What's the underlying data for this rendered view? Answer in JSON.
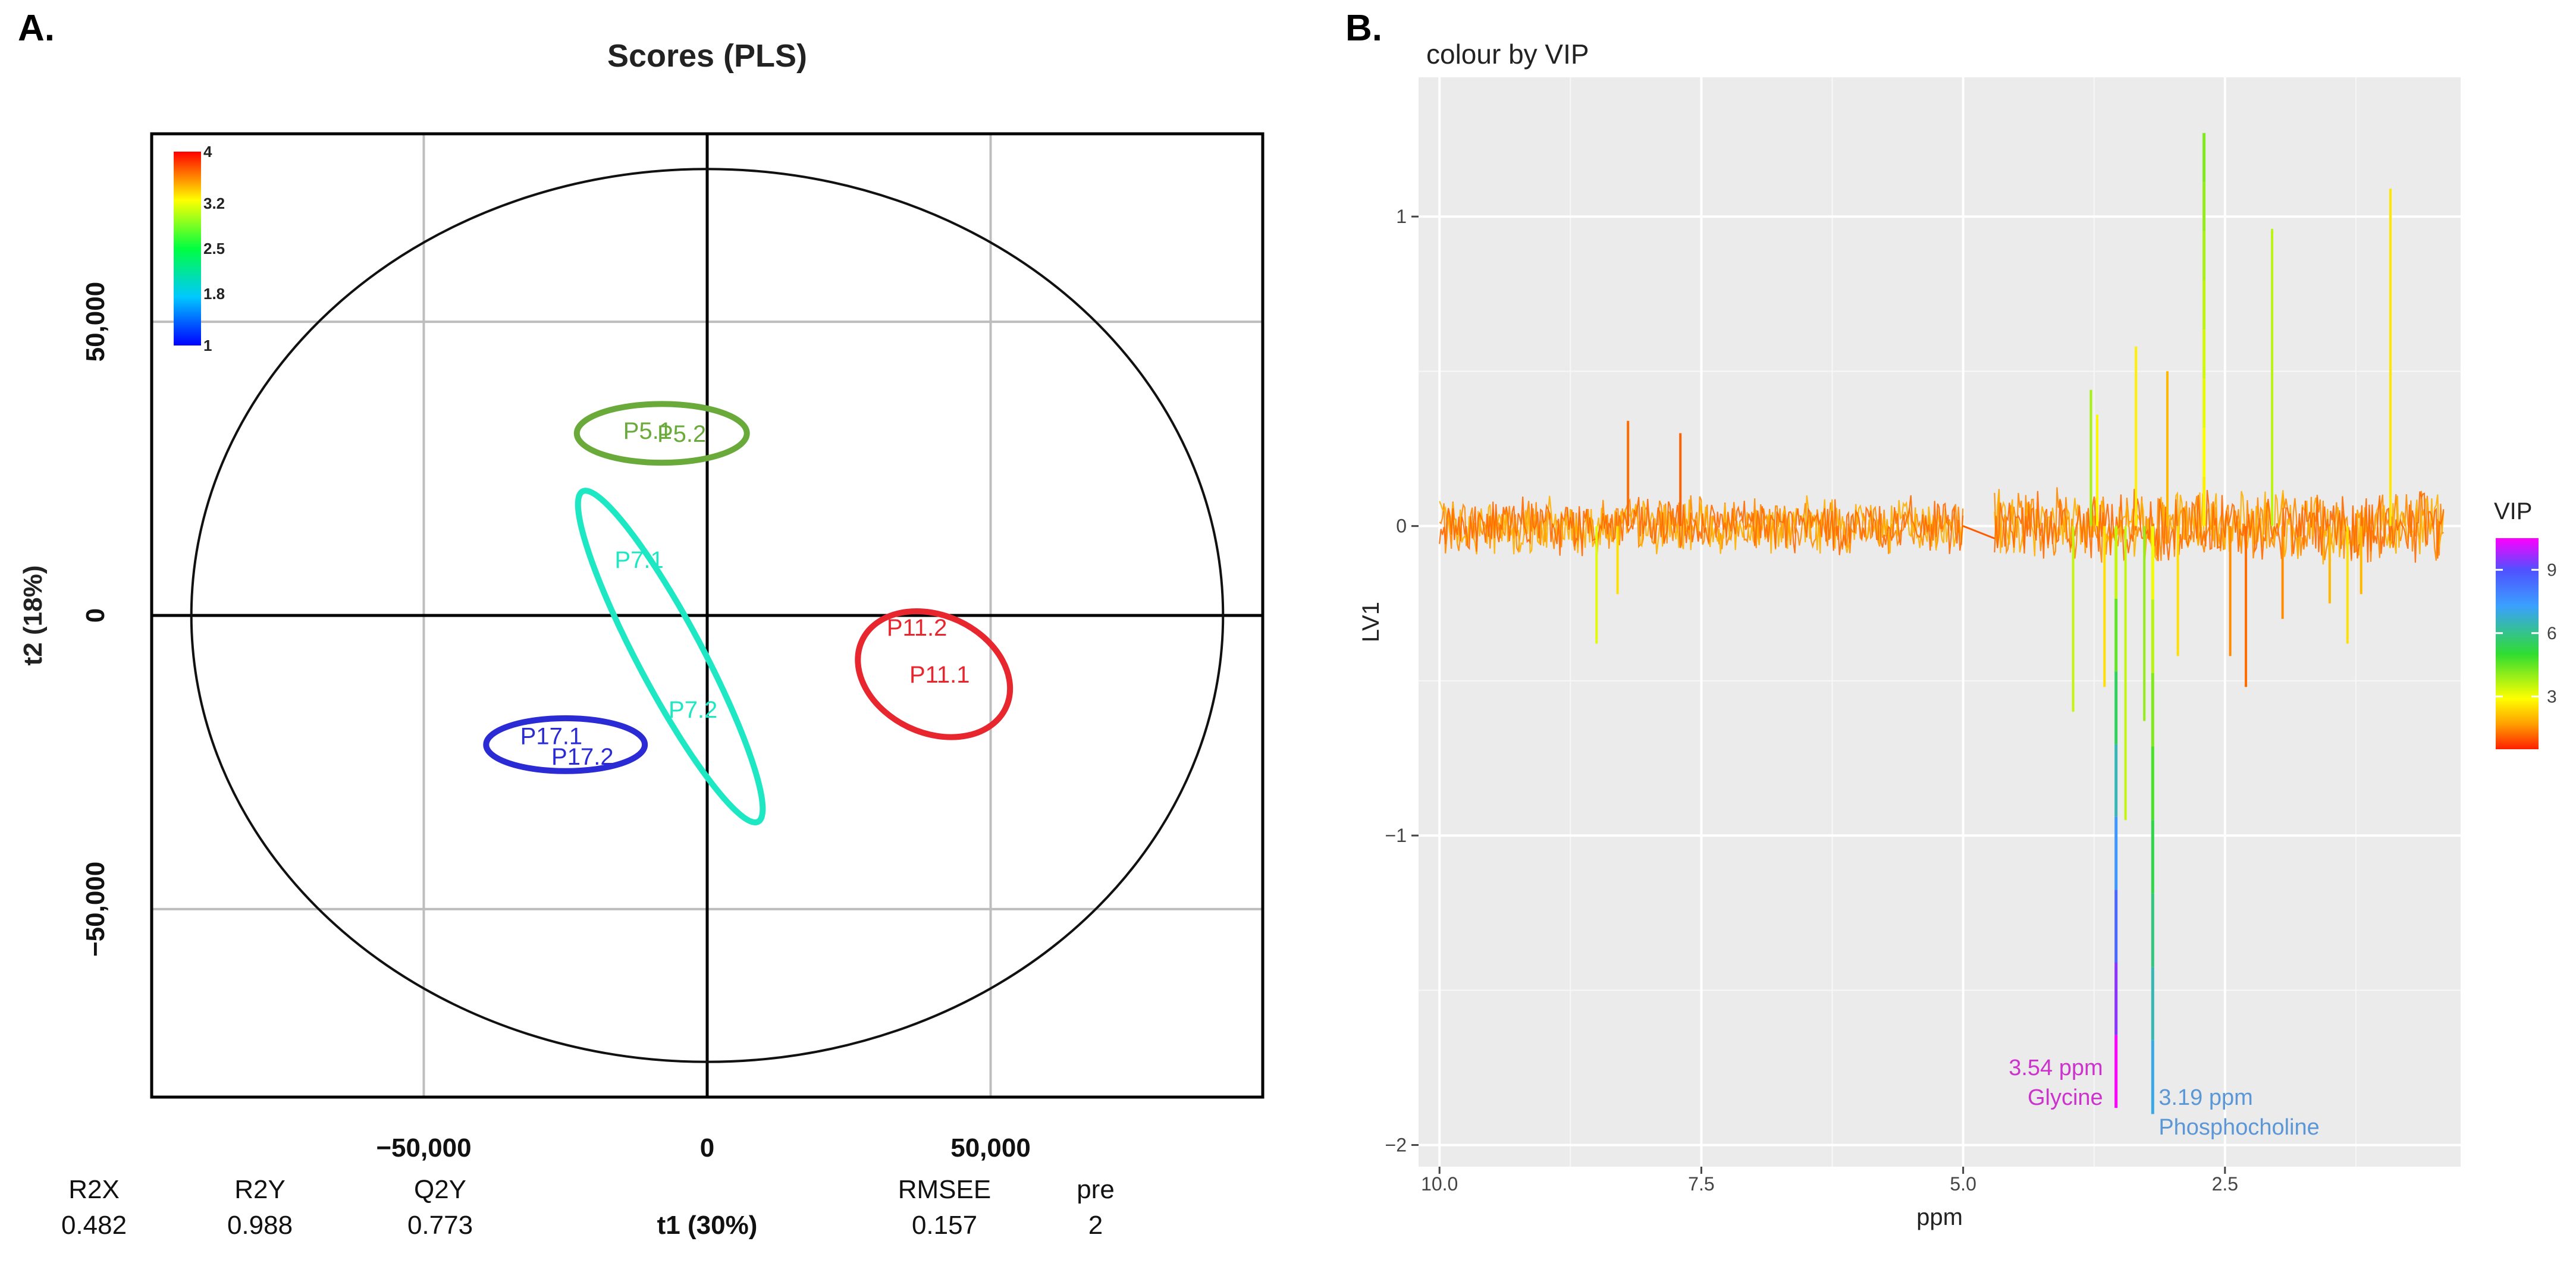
{
  "chart_data": [
    {
      "panel_label": "A.",
      "type": "scatter",
      "title": "Scores (PLS)",
      "xlabel": "t1 (30%)",
      "ylabel": "t2 (18%)",
      "xlim": [
        -98000,
        98000
      ],
      "ylim": [
        -82000,
        82000
      ],
      "xticks": [
        -50000,
        0,
        50000
      ],
      "yticks": [
        -50000,
        0,
        50000
      ],
      "xtick_labels": [
        "−50,000",
        "0",
        "50,000"
      ],
      "ytick_labels": [
        "−50,000",
        "0",
        "50,000"
      ],
      "grid": true,
      "hotelling_ellipse": {
        "cx": 0,
        "cy": 0,
        "rx": 91000,
        "ry": 76000
      },
      "colorbar": {
        "ticks": [
          "4",
          "3.2",
          "2.5",
          "1.8",
          "1"
        ],
        "min": 1,
        "max": 4
      },
      "groups": [
        {
          "name": "P5",
          "color": "#6aaa3a",
          "ellipse": {
            "cx": -8000,
            "cy": 31000,
            "rx": 15000,
            "ry": 5000,
            "angle": 0
          },
          "points": [
            {
              "label": "P5.1",
              "x": -10500,
              "y": 31500
            },
            {
              "label": "P5.2",
              "x": -4500,
              "y": 31000
            }
          ]
        },
        {
          "name": "P7",
          "color": "#1ee8c4",
          "ellipse": {
            "cx": -6500,
            "cy": -7000,
            "rx": 33000,
            "ry": 5500,
            "angle": 62
          },
          "points": [
            {
              "label": "P7.1",
              "x": -12000,
              "y": 9500
            },
            {
              "label": "P7.2",
              "x": -2500,
              "y": -16000
            }
          ]
        },
        {
          "name": "P11",
          "color": "#e8262e",
          "ellipse": {
            "cx": 40000,
            "cy": -10000,
            "rx": 14000,
            "ry": 10000,
            "angle": 25
          },
          "points": [
            {
              "label": "P11.2",
              "x": 37000,
              "y": -2000
            },
            {
              "label": "P11.1",
              "x": 41000,
              "y": -10000
            }
          ]
        },
        {
          "name": "P17",
          "color": "#2b2bd6",
          "ellipse": {
            "cx": -25000,
            "cy": -22000,
            "rx": 14000,
            "ry": 4500,
            "angle": 0
          },
          "points": [
            {
              "label": "P17.1",
              "x": -27500,
              "y": -20500
            },
            {
              "label": "P17.2",
              "x": -22000,
              "y": -24000
            }
          ]
        }
      ],
      "stats": {
        "headers": [
          "R2X",
          "R2Y",
          "Q2Y",
          "RMSEE",
          "pre"
        ],
        "values": [
          "0.482",
          "0.988",
          "0.773",
          "0.157",
          "2"
        ]
      }
    },
    {
      "panel_label": "B.",
      "type": "line",
      "title": "colour by VIP",
      "xlabel": "ppm",
      "ylabel": "LV1",
      "xlim": [
        10.2,
        0.25
      ],
      "ylim": [
        -2.07,
        1.45
      ],
      "xticks": [
        10.0,
        7.5,
        5.0,
        2.5
      ],
      "xtick_labels": [
        "10.0",
        "7.5",
        "5.0",
        "2.5"
      ],
      "yticks": [
        1,
        0,
        -1,
        -2
      ],
      "ytick_labels": [
        "1",
        "0",
        "−1",
        "−2"
      ],
      "grid": true,
      "legend": {
        "title": "VIP",
        "ticks": [
          "9",
          "6",
          "3"
        ],
        "min": 0.5,
        "max": 10.5,
        "placement": "right"
      },
      "spectrum_segments": [
        {
          "from_ppm": 10.0,
          "to_ppm": 5.0,
          "baseline": 0.0,
          "noise": 0.08
        },
        {
          "from_ppm": 4.7,
          "to_ppm": 0.4,
          "baseline": 0.0,
          "noise": 0.1
        }
      ],
      "peaks": [
        {
          "ppm": 8.5,
          "value": -0.38,
          "vip": 3.2
        },
        {
          "ppm": 8.3,
          "value": -0.22,
          "vip": 2.5
        },
        {
          "ppm": 8.2,
          "value": 0.34,
          "vip": 1.2
        },
        {
          "ppm": 7.7,
          "value": 0.3,
          "vip": 1.1
        },
        {
          "ppm": 3.95,
          "value": -0.6,
          "vip": 3.5
        },
        {
          "ppm": 3.78,
          "value": 0.44,
          "vip": 3.8
        },
        {
          "ppm": 3.72,
          "value": 0.36,
          "vip": 2.8
        },
        {
          "ppm": 3.65,
          "value": -0.52,
          "vip": 2.5
        },
        {
          "ppm": 3.54,
          "value": -1.88,
          "vip": 10.5
        },
        {
          "ppm": 3.45,
          "value": -0.95,
          "vip": 3.5
        },
        {
          "ppm": 3.35,
          "value": 0.58,
          "vip": 2.7
        },
        {
          "ppm": 3.27,
          "value": -0.63,
          "vip": 4.0
        },
        {
          "ppm": 3.19,
          "value": -1.9,
          "vip": 7.0
        },
        {
          "ppm": 3.05,
          "value": 0.5,
          "vip": 2.0
        },
        {
          "ppm": 2.95,
          "value": -0.42,
          "vip": 2.5
        },
        {
          "ppm": 2.7,
          "value": 1.27,
          "vip": 4.2
        },
        {
          "ppm": 2.45,
          "value": -0.42,
          "vip": 1.5
        },
        {
          "ppm": 2.3,
          "value": -0.52,
          "vip": 1.2
        },
        {
          "ppm": 2.05,
          "value": 0.96,
          "vip": 3.6
        },
        {
          "ppm": 1.95,
          "value": -0.3,
          "vip": 1.5
        },
        {
          "ppm": 1.5,
          "value": -0.25,
          "vip": 2.0
        },
        {
          "ppm": 1.33,
          "value": -0.38,
          "vip": 2.5
        },
        {
          "ppm": 1.2,
          "value": -0.22,
          "vip": 2.0
        },
        {
          "ppm": 0.92,
          "value": 1.09,
          "vip": 2.6
        }
      ],
      "annotations": [
        {
          "ppm_text": "3.54 ppm",
          "compound": "Glycine",
          "ppm": 3.54,
          "color": "#cc33cc"
        },
        {
          "ppm_text": "3.19 ppm",
          "compound": "Phosphocholine",
          "ppm": 3.19,
          "color": "#5b97d6"
        }
      ]
    }
  ]
}
